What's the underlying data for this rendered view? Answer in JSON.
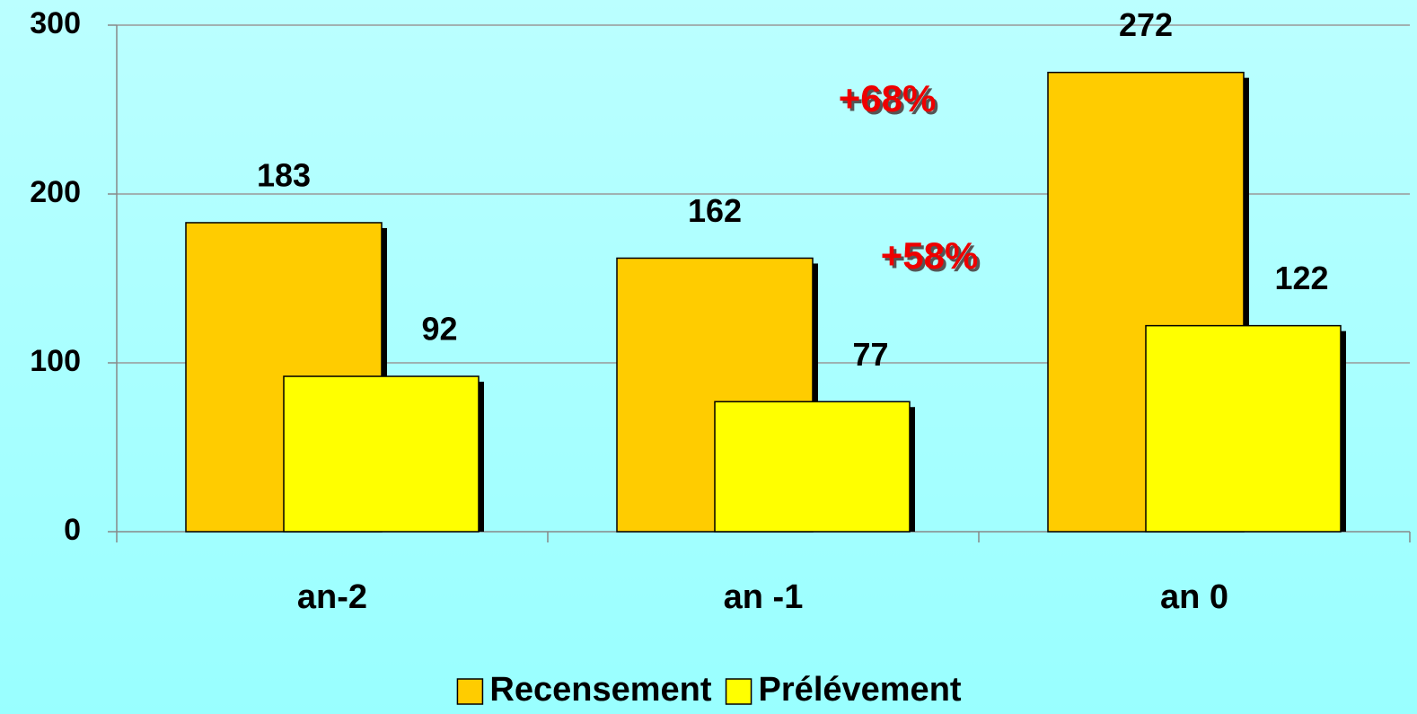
{
  "chart_data": {
    "type": "bar",
    "categories": [
      "an-2",
      "an -1",
      "an 0"
    ],
    "series": [
      {
        "name": "Recensement",
        "color": "#ffcc00",
        "values": [
          183,
          162,
          272
        ]
      },
      {
        "name": "Prélévement",
        "color": "#ffff00",
        "values": [
          92,
          77,
          122
        ]
      }
    ],
    "ylim": [
      0,
      300
    ],
    "yticks": [
      0,
      100,
      200,
      300
    ],
    "grid": true,
    "legend": "bottom",
    "annotations": [
      "+68%",
      "+58%"
    ]
  }
}
